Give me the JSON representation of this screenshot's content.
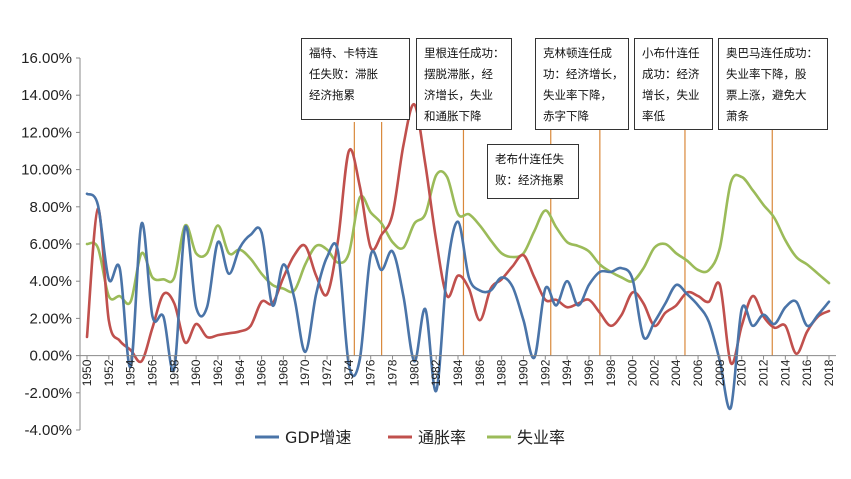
{
  "chart_data": {
    "type": "line",
    "title": "",
    "xlabel": "",
    "ylabel": "",
    "ylim": [
      -0.04,
      0.16
    ],
    "ytick_step": 0.02,
    "ytick_labels": [
      "-4.00%",
      "-2.00%",
      "0.00%",
      "2.00%",
      "4.00%",
      "6.00%",
      "8.00%",
      "10.00%",
      "12.00%",
      "14.00%",
      "16.00%"
    ],
    "xlim": [
      1950,
      2018
    ],
    "xtick_labels": [
      "1950",
      "1952",
      "1954",
      "1956",
      "1958",
      "1960",
      "1962",
      "1964",
      "1966",
      "1968",
      "1970",
      "1972",
      "1974",
      "1976",
      "1978",
      "1980",
      "1982",
      "1984",
      "1986",
      "1988",
      "1990",
      "1992",
      "1994",
      "1996",
      "1998",
      "2000",
      "2002",
      "2004",
      "2006",
      "2008",
      "2010",
      "2012",
      "2014",
      "2016",
      "2018"
    ],
    "x": [
      1950,
      1951,
      1952,
      1953,
      1954,
      1955,
      1956,
      1957,
      1958,
      1959,
      1960,
      1961,
      1962,
      1963,
      1964,
      1965,
      1966,
      1967,
      1968,
      1969,
      1970,
      1971,
      1972,
      1973,
      1974,
      1975,
      1976,
      1977,
      1978,
      1979,
      1980,
      1981,
      1982,
      1983,
      1984,
      1985,
      1986,
      1987,
      1988,
      1989,
      1990,
      1991,
      1992,
      1993,
      1994,
      1995,
      1996,
      1997,
      1998,
      1999,
      2000,
      2001,
      2002,
      2003,
      2004,
      2005,
      2006,
      2007,
      2008,
      2009,
      2010,
      2011,
      2012,
      2013,
      2014,
      2015,
      2016,
      2017,
      2018
    ],
    "series": [
      {
        "name": "GDP增速",
        "color": "#4a74a8",
        "values": [
          0.087,
          0.081,
          0.041,
          0.047,
          -0.006,
          0.071,
          0.021,
          0.021,
          -0.007,
          0.069,
          0.026,
          0.026,
          0.061,
          0.044,
          0.058,
          0.065,
          0.066,
          0.027,
          0.049,
          0.031,
          0.002,
          0.033,
          0.053,
          0.056,
          -0.005,
          -0.002,
          0.054,
          0.046,
          0.056,
          0.032,
          -0.003,
          0.025,
          -0.019,
          0.046,
          0.072,
          0.042,
          0.035,
          0.035,
          0.042,
          0.037,
          0.019,
          -0.001,
          0.036,
          0.027,
          0.04,
          0.027,
          0.038,
          0.045,
          0.045,
          0.047,
          0.041,
          0.01,
          0.018,
          0.028,
          0.038,
          0.033,
          0.027,
          0.018,
          -0.003,
          -0.028,
          0.025,
          0.016,
          0.022,
          0.017,
          0.026,
          0.029,
          0.016,
          0.022,
          0.029
        ]
      },
      {
        "name": "通胀率",
        "color": "#c0504d",
        "values": [
          0.01,
          0.079,
          0.019,
          0.008,
          0.003,
          -0.003,
          0.015,
          0.033,
          0.028,
          0.007,
          0.017,
          0.01,
          0.011,
          0.012,
          0.013,
          0.016,
          0.029,
          0.028,
          0.042,
          0.054,
          0.059,
          0.043,
          0.033,
          0.062,
          0.11,
          0.091,
          0.058,
          0.065,
          0.076,
          0.113,
          0.135,
          0.103,
          0.062,
          0.032,
          0.043,
          0.036,
          0.019,
          0.036,
          0.041,
          0.048,
          0.054,
          0.042,
          0.03,
          0.03,
          0.026,
          0.028,
          0.03,
          0.023,
          0.016,
          0.022,
          0.034,
          0.028,
          0.016,
          0.023,
          0.027,
          0.034,
          0.032,
          0.029,
          0.038,
          -0.004,
          0.016,
          0.032,
          0.021,
          0.015,
          0.016,
          0.001,
          0.013,
          0.021,
          0.024
        ]
      },
      {
        "name": "失业率",
        "color": "#9bbb59",
        "values": [
          0.06,
          0.058,
          0.032,
          0.032,
          0.029,
          0.055,
          0.042,
          0.041,
          0.042,
          0.07,
          0.055,
          0.055,
          0.07,
          0.055,
          0.057,
          0.052,
          0.044,
          0.038,
          0.036,
          0.035,
          0.049,
          0.059,
          0.057,
          0.05,
          0.055,
          0.085,
          0.077,
          0.071,
          0.061,
          0.058,
          0.071,
          0.076,
          0.097,
          0.096,
          0.076,
          0.076,
          0.07,
          0.062,
          0.055,
          0.053,
          0.055,
          0.067,
          0.078,
          0.069,
          0.061,
          0.059,
          0.056,
          0.049,
          0.045,
          0.042,
          0.04,
          0.047,
          0.058,
          0.06,
          0.055,
          0.051,
          0.046,
          0.046,
          0.058,
          0.093,
          0.096,
          0.089,
          0.081,
          0.074,
          0.062,
          0.053,
          0.049,
          0.044,
          0.039
        ]
      }
    ],
    "vertical_markers": [
      1974.5,
      1977,
      1984.5,
      1992.5,
      1997,
      2004.8,
      2012.8
    ],
    "legend": [
      {
        "label": "GDP增速",
        "color": "#4a74a8"
      },
      {
        "label": "通胀率",
        "color": "#c0504d"
      },
      {
        "label": "失业率",
        "color": "#9bbb59"
      }
    ],
    "legend_position": "bottom-center",
    "marker_color": "#d9883b",
    "annotations": [
      {
        "id": "ford-carter",
        "lines": [
          "福特、卡特连",
          "任失败：滞胀",
          "经济拖累"
        ]
      },
      {
        "id": "reagan",
        "lines": [
          "里根连任成功：",
          "摆脱滞胀，经",
          "济增长，失业",
          "和通胀下降"
        ]
      },
      {
        "id": "bush-sr",
        "lines": [
          "老布什连任失",
          "败：经济拖累"
        ]
      },
      {
        "id": "clinton",
        "lines": [
          "克林顿连任成",
          "功：经济增长，",
          "失业率下降，",
          "赤字下降"
        ]
      },
      {
        "id": "bush-jr",
        "lines": [
          "小布什连任",
          "成功：经济",
          "增长，失业",
          "率低"
        ]
      },
      {
        "id": "obama",
        "lines": [
          "奥巴马连任成功：",
          "失业率下降，股",
          "票上涨，避免大",
          "萧条"
        ]
      }
    ]
  }
}
